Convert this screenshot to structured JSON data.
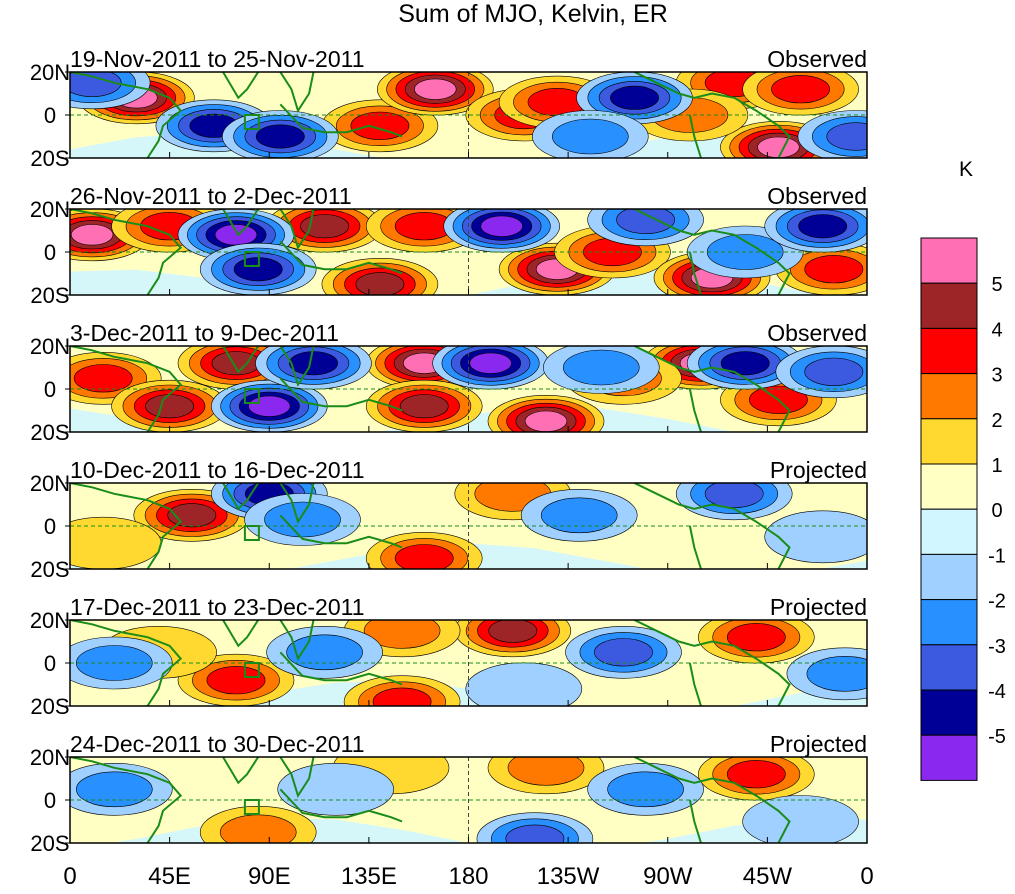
{
  "chart_data": {
    "type": "heatmap",
    "title": "Sum of MJO, Kelvin, ER",
    "units_label": "K",
    "x_tick_labels": [
      "0",
      "45E",
      "90E",
      "135E",
      "180",
      "135W",
      "90W",
      "45W",
      "0"
    ],
    "x_ticks_deg": [
      0,
      45,
      90,
      135,
      180,
      225,
      270,
      315,
      360
    ],
    "y_tick_labels": [
      "20N",
      "0",
      "20S"
    ],
    "y_ticks_deg": [
      20,
      0,
      -20
    ],
    "xlim": [
      0,
      360
    ],
    "ylim": [
      -20,
      20
    ],
    "colorbar": {
      "labels": [
        "5",
        "4",
        "3",
        "2",
        "1",
        "0",
        "-1",
        "-2",
        "-3",
        "-4",
        "-5"
      ],
      "colors": [
        "#ff6fb4",
        "#9e2527",
        "#ff0000",
        "#ff7800",
        "#ffd830",
        "#ffffc4",
        "#d2f6ff",
        "#a0d0ff",
        "#2890ff",
        "#3c5ae0",
        "#000096",
        "#8a28f0"
      ]
    },
    "panels": [
      {
        "period": "19-Nov-2011 to 25-Nov-2011",
        "status": "Observed",
        "blobs": [
          {
            "lon": 30,
            "lat": 8,
            "value": 5
          },
          {
            "lon": 140,
            "lat": -5,
            "value": 3
          },
          {
            "lon": 165,
            "lat": 12,
            "value": 5
          },
          {
            "lon": 205,
            "lat": 0,
            "value": 3
          },
          {
            "lon": 220,
            "lat": 6,
            "value": 3
          },
          {
            "lon": 300,
            "lat": 15,
            "value": 3
          },
          {
            "lon": 330,
            "lat": 12,
            "value": 3
          },
          {
            "lon": 320,
            "lat": -15,
            "value": 5
          },
          {
            "lon": 280,
            "lat": 0,
            "value": 2
          },
          {
            "lon": 65,
            "lat": -5,
            "value": -4
          },
          {
            "lon": 95,
            "lat": -10,
            "value": -4
          },
          {
            "lon": 255,
            "lat": 8,
            "value": -4
          },
          {
            "lon": 355,
            "lat": -10,
            "value": -3
          },
          {
            "lon": 10,
            "lat": 15,
            "value": -3
          },
          {
            "lon": 235,
            "lat": -10,
            "value": -2
          }
        ]
      },
      {
        "period": "26-Nov-2011 to 2-Dec-2011",
        "status": "Observed",
        "blobs": [
          {
            "lon": 10,
            "lat": 8,
            "value": 5
          },
          {
            "lon": 45,
            "lat": 12,
            "value": 3
          },
          {
            "lon": 115,
            "lat": 12,
            "value": 4
          },
          {
            "lon": 140,
            "lat": -15,
            "value": 4
          },
          {
            "lon": 160,
            "lat": 12,
            "value": 3
          },
          {
            "lon": 220,
            "lat": -8,
            "value": 5
          },
          {
            "lon": 245,
            "lat": 0,
            "value": 3
          },
          {
            "lon": 290,
            "lat": -12,
            "value": 5
          },
          {
            "lon": 345,
            "lat": -8,
            "value": 3
          },
          {
            "lon": 75,
            "lat": 8,
            "value": -5
          },
          {
            "lon": 85,
            "lat": -8,
            "value": -4
          },
          {
            "lon": 195,
            "lat": 12,
            "value": -5
          },
          {
            "lon": 260,
            "lat": 15,
            "value": -3
          },
          {
            "lon": 305,
            "lat": 0,
            "value": -2
          },
          {
            "lon": 340,
            "lat": 12,
            "value": -4
          }
        ]
      },
      {
        "period": "3-Dec-2011 to 9-Dec-2011",
        "status": "Observed",
        "blobs": [
          {
            "lon": 15,
            "lat": 5,
            "value": 3
          },
          {
            "lon": 45,
            "lat": -8,
            "value": 4
          },
          {
            "lon": 75,
            "lat": 12,
            "value": 4
          },
          {
            "lon": 160,
            "lat": 12,
            "value": 5
          },
          {
            "lon": 160,
            "lat": -8,
            "value": 4
          },
          {
            "lon": 215,
            "lat": -15,
            "value": 5
          },
          {
            "lon": 285,
            "lat": 12,
            "value": 5
          },
          {
            "lon": 320,
            "lat": -5,
            "value": 3
          },
          {
            "lon": 250,
            "lat": 5,
            "value": 2
          },
          {
            "lon": 90,
            "lat": -8,
            "value": -5
          },
          {
            "lon": 110,
            "lat": 12,
            "value": -4
          },
          {
            "lon": 190,
            "lat": 12,
            "value": -5
          },
          {
            "lon": 240,
            "lat": 10,
            "value": -2
          },
          {
            "lon": 305,
            "lat": 12,
            "value": -4
          },
          {
            "lon": 345,
            "lat": 8,
            "value": -3
          }
        ]
      },
      {
        "period": "10-Dec-2011 to 16-Dec-2011",
        "status": "Projected",
        "blobs": [
          {
            "lon": 55,
            "lat": 5,
            "value": 4
          },
          {
            "lon": 160,
            "lat": -15,
            "value": 3
          },
          {
            "lon": 200,
            "lat": 15,
            "value": 2
          },
          {
            "lon": 15,
            "lat": -8,
            "value": 1
          },
          {
            "lon": 90,
            "lat": 15,
            "value": -4
          },
          {
            "lon": 105,
            "lat": 3,
            "value": -2
          },
          {
            "lon": 230,
            "lat": 5,
            "value": -2
          },
          {
            "lon": 300,
            "lat": 15,
            "value": -3
          },
          {
            "lon": 340,
            "lat": -5,
            "value": -1
          }
        ]
      },
      {
        "period": "17-Dec-2011 to 23-Dec-2011",
        "status": "Projected",
        "blobs": [
          {
            "lon": 75,
            "lat": -8,
            "value": 3
          },
          {
            "lon": 200,
            "lat": 15,
            "value": 4
          },
          {
            "lon": 150,
            "lat": 15,
            "value": 2
          },
          {
            "lon": 310,
            "lat": 12,
            "value": 3
          },
          {
            "lon": 150,
            "lat": -18,
            "value": 3
          },
          {
            "lon": 40,
            "lat": 5,
            "value": 1
          },
          {
            "lon": 250,
            "lat": 5,
            "value": -3
          },
          {
            "lon": 20,
            "lat": 0,
            "value": -2
          },
          {
            "lon": 115,
            "lat": 5,
            "value": -2
          },
          {
            "lon": 350,
            "lat": -5,
            "value": -2
          },
          {
            "lon": 205,
            "lat": -12,
            "value": -1
          }
        ]
      },
      {
        "period": "24-Dec-2011 to 30-Dec-2011",
        "status": "Projected",
        "blobs": [
          {
            "lon": 85,
            "lat": -15,
            "value": 2
          },
          {
            "lon": 215,
            "lat": 15,
            "value": 2
          },
          {
            "lon": 310,
            "lat": 12,
            "value": 3
          },
          {
            "lon": 145,
            "lat": 15,
            "value": 1
          },
          {
            "lon": 260,
            "lat": 5,
            "value": -2
          },
          {
            "lon": 210,
            "lat": -18,
            "value": -3
          },
          {
            "lon": 20,
            "lat": 5,
            "value": -2
          },
          {
            "lon": 120,
            "lat": 5,
            "value": -1
          },
          {
            "lon": 330,
            "lat": -10,
            "value": -1
          }
        ]
      }
    ]
  }
}
